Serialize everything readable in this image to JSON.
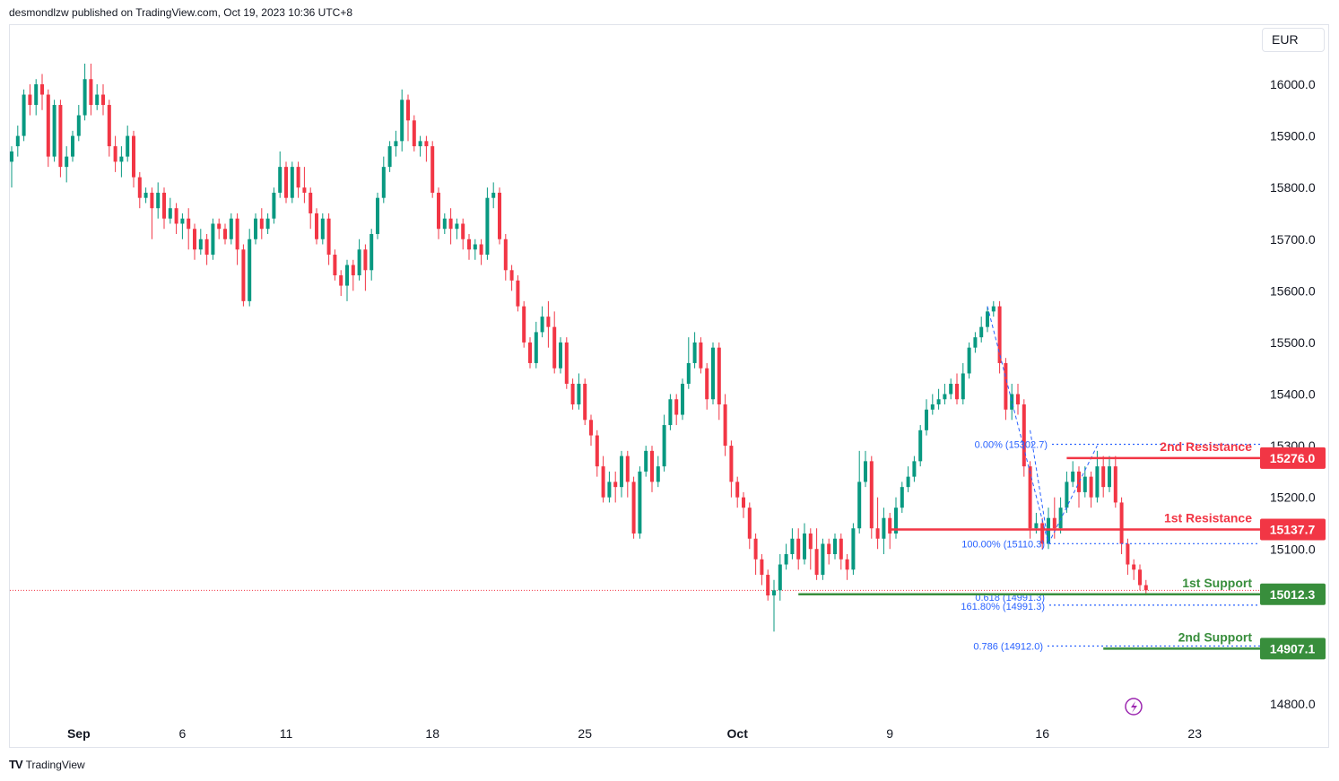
{
  "header": {
    "text": "desmondlzw published on TradingView.com, Oct 19, 2023 10:36 UTC+8"
  },
  "currency_label": "EUR",
  "footer": {
    "logo": "TV",
    "brand": "TradingView"
  },
  "colors": {
    "up": "#089981",
    "down": "#f23645",
    "resistance": "#f23645",
    "support": "#388e3c",
    "fib": "#2962ff",
    "current_price_line": "#f23645"
  },
  "chart_data": {
    "type": "candlestick",
    "title": "",
    "ylim": [
      14740,
      16150
    ],
    "y_ticks": [
      "16000.0",
      "15900.0",
      "15800.0",
      "15700.0",
      "15600.0",
      "15500.0",
      "15400.0",
      "15300.0",
      "15200.0",
      "15100.0",
      "14800.0"
    ],
    "y_tick_values": [
      16000,
      15900,
      15800,
      15700,
      15600,
      15500,
      15400,
      15300,
      15200,
      15100,
      14800
    ],
    "x_ticks": [
      {
        "label": "Sep",
        "bar": 11,
        "bold": true
      },
      {
        "label": "6",
        "bar": 28
      },
      {
        "label": "11",
        "bar": 45
      },
      {
        "label": "18",
        "bar": 69
      },
      {
        "label": "25",
        "bar": 94
      },
      {
        "label": "Oct",
        "bar": 119,
        "bold": true
      },
      {
        "label": "9",
        "bar": 144
      },
      {
        "label": "16",
        "bar": 169
      },
      {
        "label": "23",
        "bar": 194
      }
    ],
    "candles": [
      [
        15850,
        15870,
        15800,
        15880
      ],
      [
        15880,
        15900,
        15860,
        15920
      ],
      [
        15900,
        15980,
        15890,
        15990
      ],
      [
        15980,
        15960,
        15940,
        16000
      ],
      [
        15960,
        16000,
        15940,
        16010
      ],
      [
        16000,
        15980,
        15950,
        16020
      ],
      [
        15980,
        15860,
        15840,
        15990
      ],
      [
        15860,
        15960,
        15850,
        15970
      ],
      [
        15960,
        15840,
        15820,
        15970
      ],
      [
        15840,
        15860,
        15810,
        15880
      ],
      [
        15860,
        15900,
        15850,
        15910
      ],
      [
        15900,
        15940,
        15890,
        15960
      ],
      [
        15940,
        16010,
        15930,
        16040
      ],
      [
        16010,
        15960,
        15940,
        16040
      ],
      [
        15960,
        15980,
        15950,
        16000
      ],
      [
        15980,
        15960,
        15940,
        16000
      ],
      [
        15960,
        15880,
        15860,
        15970
      ],
      [
        15880,
        15850,
        15830,
        15900
      ],
      [
        15850,
        15860,
        15820,
        15880
      ],
      [
        15860,
        15900,
        15850,
        15920
      ],
      [
        15900,
        15820,
        15800,
        15910
      ],
      [
        15820,
        15780,
        15760,
        15830
      ],
      [
        15780,
        15790,
        15770,
        15800
      ],
      [
        15790,
        15760,
        15700,
        15800
      ],
      [
        15760,
        15790,
        15740,
        15810
      ],
      [
        15790,
        15740,
        15720,
        15800
      ],
      [
        15740,
        15760,
        15730,
        15780
      ],
      [
        15760,
        15730,
        15710,
        15770
      ],
      [
        15730,
        15740,
        15700,
        15750
      ],
      [
        15740,
        15720,
        15680,
        15760
      ],
      [
        15720,
        15680,
        15660,
        15730
      ],
      [
        15680,
        15700,
        15670,
        15720
      ],
      [
        15700,
        15670,
        15650,
        15710
      ],
      [
        15670,
        15730,
        15660,
        15740
      ],
      [
        15730,
        15720,
        15700,
        15740
      ],
      [
        15720,
        15700,
        15690,
        15730
      ],
      [
        15700,
        15740,
        15690,
        15750
      ],
      [
        15740,
        15680,
        15650,
        15750
      ],
      [
        15680,
        15580,
        15570,
        15690
      ],
      [
        15580,
        15700,
        15570,
        15720
      ],
      [
        15700,
        15740,
        15690,
        15750
      ],
      [
        15740,
        15720,
        15700,
        15760
      ],
      [
        15720,
        15740,
        15710,
        15750
      ],
      [
        15740,
        15790,
        15730,
        15800
      ],
      [
        15790,
        15840,
        15780,
        15870
      ],
      [
        15840,
        15780,
        15770,
        15850
      ],
      [
        15780,
        15840,
        15770,
        15850
      ],
      [
        15840,
        15800,
        15780,
        15850
      ],
      [
        15800,
        15790,
        15770,
        15840
      ],
      [
        15790,
        15750,
        15720,
        15800
      ],
      [
        15750,
        15700,
        15690,
        15760
      ],
      [
        15700,
        15740,
        15690,
        15750
      ],
      [
        15740,
        15670,
        15650,
        15750
      ],
      [
        15670,
        15630,
        15620,
        15680
      ],
      [
        15630,
        15610,
        15590,
        15640
      ],
      [
        15610,
        15650,
        15580,
        15660
      ],
      [
        15650,
        15630,
        15600,
        15660
      ],
      [
        15630,
        15680,
        15620,
        15700
      ],
      [
        15680,
        15640,
        15600,
        15690
      ],
      [
        15640,
        15710,
        15620,
        15720
      ],
      [
        15710,
        15780,
        15700,
        15790
      ],
      [
        15780,
        15840,
        15770,
        15860
      ],
      [
        15840,
        15880,
        15830,
        15890
      ],
      [
        15880,
        15890,
        15860,
        15910
      ],
      [
        15890,
        15970,
        15870,
        15990
      ],
      [
        15970,
        15930,
        15890,
        15980
      ],
      [
        15930,
        15880,
        15870,
        15940
      ],
      [
        15880,
        15890,
        15860,
        15900
      ],
      [
        15890,
        15880,
        15850,
        15900
      ],
      [
        15880,
        15790,
        15780,
        15890
      ],
      [
        15790,
        15720,
        15700,
        15800
      ],
      [
        15720,
        15740,
        15710,
        15750
      ],
      [
        15740,
        15720,
        15690,
        15760
      ],
      [
        15720,
        15730,
        15700,
        15740
      ],
      [
        15730,
        15700,
        15680,
        15740
      ],
      [
        15700,
        15680,
        15660,
        15710
      ],
      [
        15680,
        15690,
        15660,
        15700
      ],
      [
        15690,
        15670,
        15650,
        15700
      ],
      [
        15670,
        15780,
        15660,
        15800
      ],
      [
        15780,
        15790,
        15760,
        15810
      ],
      [
        15790,
        15700,
        15690,
        15800
      ],
      [
        15700,
        15640,
        15620,
        15710
      ],
      [
        15640,
        15620,
        15600,
        15650
      ],
      [
        15620,
        15570,
        15560,
        15630
      ],
      [
        15570,
        15500,
        15490,
        15580
      ],
      [
        15500,
        15460,
        15450,
        15510
      ],
      [
        15460,
        15520,
        15450,
        15540
      ],
      [
        15520,
        15550,
        15510,
        15570
      ],
      [
        15550,
        15530,
        15490,
        15580
      ],
      [
        15530,
        15450,
        15440,
        15560
      ],
      [
        15450,
        15500,
        15440,
        15510
      ],
      [
        15500,
        15420,
        15410,
        15510
      ],
      [
        15420,
        15380,
        15370,
        15430
      ],
      [
        15380,
        15420,
        15370,
        15440
      ],
      [
        15420,
        15350,
        15340,
        15430
      ],
      [
        15350,
        15320,
        15300,
        15360
      ],
      [
        15320,
        15260,
        15240,
        15330
      ],
      [
        15260,
        15200,
        15190,
        15280
      ],
      [
        15200,
        15230,
        15190,
        15250
      ],
      [
        15230,
        15220,
        15190,
        15250
      ],
      [
        15220,
        15280,
        15200,
        15290
      ],
      [
        15280,
        15230,
        15200,
        15290
      ],
      [
        15230,
        15130,
        15120,
        15240
      ],
      [
        15130,
        15250,
        15120,
        15260
      ],
      [
        15250,
        15290,
        15240,
        15300
      ],
      [
        15290,
        15230,
        15210,
        15300
      ],
      [
        15230,
        15260,
        15220,
        15280
      ],
      [
        15260,
        15340,
        15250,
        15360
      ],
      [
        15340,
        15390,
        15330,
        15400
      ],
      [
        15390,
        15360,
        15340,
        15400
      ],
      [
        15360,
        15420,
        15350,
        15430
      ],
      [
        15420,
        15460,
        15410,
        15510
      ],
      [
        15460,
        15500,
        15450,
        15520
      ],
      [
        15500,
        15450,
        15440,
        15510
      ],
      [
        15450,
        15390,
        15370,
        15460
      ],
      [
        15390,
        15490,
        15380,
        15500
      ],
      [
        15490,
        15380,
        15350,
        15500
      ],
      [
        15380,
        15300,
        15280,
        15400
      ],
      [
        15300,
        15230,
        15200,
        15310
      ],
      [
        15230,
        15200,
        15180,
        15240
      ],
      [
        15200,
        15180,
        15160,
        15210
      ],
      [
        15180,
        15120,
        15100,
        15190
      ],
      [
        15120,
        15080,
        15050,
        15130
      ],
      [
        15080,
        15050,
        15030,
        15090
      ],
      [
        15050,
        15010,
        15000,
        15060
      ],
      [
        15010,
        15020,
        14940,
        15040
      ],
      [
        15020,
        15070,
        15000,
        15090
      ],
      [
        15070,
        15090,
        15060,
        15110
      ],
      [
        15090,
        15120,
        15080,
        15140
      ],
      [
        15120,
        15080,
        15060,
        15140
      ],
      [
        15080,
        15130,
        15070,
        15150
      ],
      [
        15130,
        15100,
        15060,
        15140
      ],
      [
        15100,
        15050,
        15040,
        15140
      ],
      [
        15050,
        15110,
        15040,
        15120
      ],
      [
        15110,
        15090,
        15070,
        15120
      ],
      [
        15090,
        15120,
        15080,
        15130
      ],
      [
        15120,
        15080,
        15060,
        15130
      ],
      [
        15080,
        15060,
        15040,
        15090
      ],
      [
        15060,
        15140,
        15050,
        15150
      ],
      [
        15140,
        15230,
        15130,
        15290
      ],
      [
        15230,
        15270,
        15220,
        15290
      ],
      [
        15270,
        15140,
        15120,
        15280
      ],
      [
        15140,
        15120,
        15100,
        15200
      ],
      [
        15120,
        15160,
        15090,
        15180
      ],
      [
        15160,
        15130,
        15100,
        15170
      ],
      [
        15130,
        15180,
        15120,
        15200
      ],
      [
        15180,
        15220,
        15170,
        15230
      ],
      [
        15220,
        15240,
        15210,
        15260
      ],
      [
        15240,
        15270,
        15230,
        15280
      ],
      [
        15270,
        15330,
        15260,
        15340
      ],
      [
        15330,
        15370,
        15320,
        15390
      ],
      [
        15370,
        15380,
        15360,
        15400
      ],
      [
        15380,
        15390,
        15370,
        15410
      ],
      [
        15390,
        15400,
        15380,
        15420
      ],
      [
        15400,
        15420,
        15390,
        15430
      ],
      [
        15420,
        15390,
        15380,
        15440
      ],
      [
        15390,
        15440,
        15380,
        15460
      ],
      [
        15440,
        15490,
        15430,
        15500
      ],
      [
        15490,
        15510,
        15480,
        15520
      ],
      [
        15510,
        15530,
        15500,
        15550
      ],
      [
        15530,
        15560,
        15520,
        15570
      ],
      [
        15560,
        15570,
        15550,
        15580
      ],
      [
        15570,
        15460,
        15440,
        15580
      ],
      [
        15460,
        15370,
        15350,
        15470
      ],
      [
        15370,
        15400,
        15350,
        15420
      ],
      [
        15400,
        15380,
        15360,
        15420
      ],
      [
        15380,
        15260,
        15240,
        15390
      ],
      [
        15260,
        15140,
        15120,
        15270
      ],
      [
        15140,
        15150,
        15130,
        15170
      ],
      [
        15150,
        15110,
        15100,
        15160
      ],
      [
        15110,
        15160,
        15100,
        15180
      ],
      [
        15160,
        15140,
        15120,
        15200
      ],
      [
        15140,
        15180,
        15130,
        15200
      ],
      [
        15180,
        15230,
        15170,
        15250
      ],
      [
        15230,
        15250,
        15220,
        15270
      ],
      [
        15250,
        15210,
        15180,
        15260
      ],
      [
        15210,
        15240,
        15200,
        15260
      ],
      [
        15240,
        15200,
        15180,
        15250
      ],
      [
        15200,
        15260,
        15190,
        15290
      ],
      [
        15260,
        15220,
        15200,
        15280
      ],
      [
        15220,
        15260,
        15210,
        15280
      ],
      [
        15260,
        15190,
        15180,
        15280
      ],
      [
        15190,
        15110,
        15090,
        15200
      ],
      [
        15110,
        15070,
        15050,
        15120
      ],
      [
        15070,
        15060,
        15040,
        15080
      ],
      [
        15060,
        15030,
        15020,
        15070
      ],
      [
        15030,
        15020,
        15010,
        15040
      ]
    ],
    "current_price": 15020,
    "fib_labels": [
      {
        "text": "0.00% (15302.7)",
        "value": 15302.7
      },
      {
        "text": "100.00% (15110.3)",
        "value": 15110.3
      },
      {
        "text": "161.80% (14991.3)",
        "value": 14991.3
      },
      {
        "text": "0.618 (14991.3)",
        "value": 14991.3
      },
      {
        "text": "0.786 (14912.0)",
        "value": 14912.0
      }
    ],
    "levels": [
      {
        "name": "2nd Resistance",
        "value": 15276.0,
        "label": "15276.0",
        "kind": "resistance"
      },
      {
        "name": "1st Resistance",
        "value": 15137.7,
        "label": "15137.7",
        "kind": "resistance"
      },
      {
        "name": "1st Support",
        "value": 15012.3,
        "label": "15012.3",
        "kind": "support"
      },
      {
        "name": "2nd Support",
        "value": 14907.1,
        "label": "14907.1",
        "kind": "support"
      }
    ]
  }
}
